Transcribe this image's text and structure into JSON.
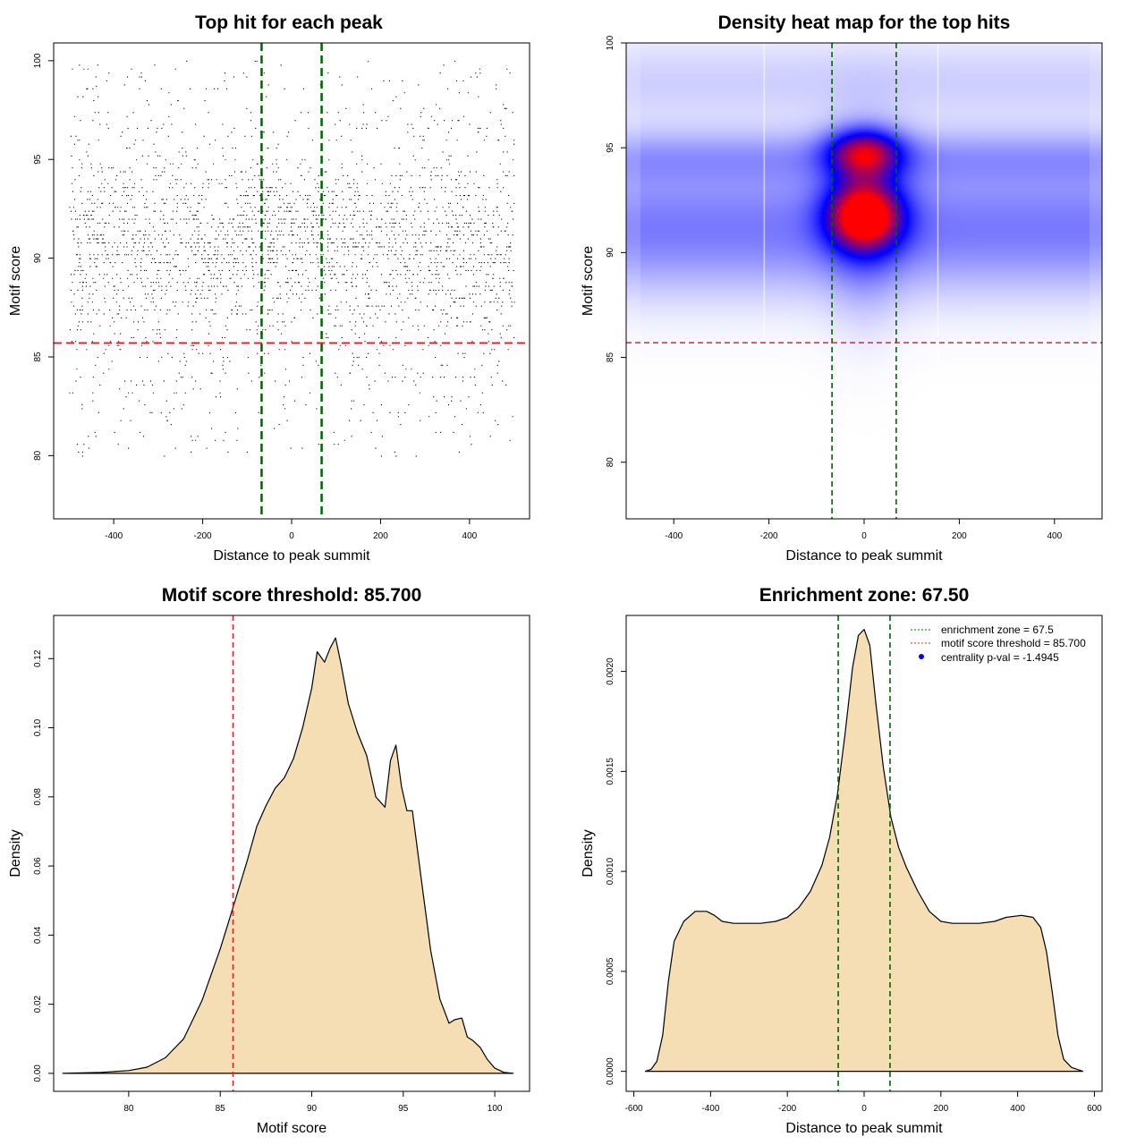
{
  "colors": {
    "green_line": "#006400",
    "red_line": "#e3242b",
    "density_fill": "#f5deb3",
    "heat_low": "#ffffff",
    "heat_mid": "#0000ff",
    "heat_high": "#ff0000",
    "legend_point": "#0000ff"
  },
  "chart_data": [
    {
      "id": "scatter",
      "type": "scatter",
      "title": "Top hit for each peak",
      "xlabel": "Distance to peak summit",
      "ylabel": "Motif score",
      "xlim": [
        -535,
        535
      ],
      "ylim": [
        76.8,
        100.9
      ],
      "xticks": [
        -400,
        -200,
        0,
        200,
        400
      ],
      "xtick_labels": [
        "-400",
        "-200",
        "0",
        "200",
        "400"
      ],
      "yticks": [
        80,
        85,
        90,
        95,
        100
      ],
      "ytick_labels": [
        "80",
        "85",
        "90",
        "95",
        "100"
      ],
      "vlines": [
        -67.5,
        67.5
      ],
      "hline": 85.7,
      "note": "Approximately 20000 points; x uniform in [-500, 500], scores distributed 77–100 with denser central band near x=0"
    },
    {
      "id": "heatmap",
      "type": "heatmap",
      "title": "Density heat map for the top hits",
      "xlabel": "Distance to peak summit",
      "ylabel": "Motif score",
      "xlim": [
        -500,
        500
      ],
      "ylim": [
        77.3,
        100
      ],
      "xticks": [
        -400,
        -200,
        0,
        200,
        400
      ],
      "xtick_labels": [
        "-400",
        "-200",
        "0",
        "200",
        "400"
      ],
      "yticks": [
        80,
        85,
        90,
        95,
        100
      ],
      "ytick_labels": [
        "80",
        "85",
        "90",
        "95",
        "100"
      ],
      "vlines": [
        -67.5,
        67.5
      ],
      "hline": 85.7,
      "peaks": [
        {
          "x": 0,
          "y": 91.8,
          "intensity": 1.0
        },
        {
          "x": 0,
          "y": 94.7,
          "intensity": 0.85
        }
      ]
    },
    {
      "id": "score_density",
      "type": "area",
      "title": "Motif score threshold: 85.700",
      "xlabel": "Motif score",
      "ylabel": "Density",
      "xlim": [
        75.9,
        101.9
      ],
      "ylim": [
        -0.0052,
        0.1325
      ],
      "xticks": [
        80,
        85,
        90,
        95,
        100
      ],
      "xtick_labels": [
        "80",
        "85",
        "90",
        "95",
        "100"
      ],
      "yticks": [
        0.0,
        0.02,
        0.04,
        0.06,
        0.08,
        0.1,
        0.12
      ],
      "ytick_labels": [
        "0.00",
        "0.02",
        "0.04",
        "0.06",
        "0.08",
        "0.10",
        "0.12"
      ],
      "vline": 85.7,
      "x": [
        76.4,
        78.5,
        80,
        81,
        82,
        83,
        84,
        85,
        85.7,
        86.5,
        87,
        87.5,
        88,
        88.5,
        89,
        89.5,
        90,
        90.3,
        90.7,
        91,
        91.3,
        91.6,
        92,
        92.5,
        93,
        93.5,
        94,
        94.3,
        94.6,
        94.9,
        95.2,
        95.5,
        96,
        96.5,
        97,
        97.5,
        97.8,
        98.2,
        98.5,
        98.8,
        99.2,
        99.6,
        100,
        100.5,
        101
      ],
      "y": [
        0.0,
        0.0003,
        0.0008,
        0.0018,
        0.0045,
        0.01,
        0.021,
        0.036,
        0.048,
        0.062,
        0.0715,
        0.0775,
        0.0825,
        0.0855,
        0.091,
        0.1,
        0.1115,
        0.122,
        0.119,
        0.123,
        0.126,
        0.1185,
        0.107,
        0.0985,
        0.092,
        0.08,
        0.077,
        0.0905,
        0.095,
        0.083,
        0.076,
        0.076,
        0.0555,
        0.0355,
        0.0215,
        0.0145,
        0.0155,
        0.016,
        0.0105,
        0.0095,
        0.0075,
        0.004,
        0.0015,
        0.0003,
        0.0
      ]
    },
    {
      "id": "distance_density",
      "type": "area",
      "title": "Enrichment zone: 67.50",
      "xlabel": "Distance to peak summit",
      "ylabel": "Density",
      "xlim": [
        -620,
        620
      ],
      "ylim": [
        -0.0001,
        0.00228
      ],
      "xticks": [
        -600,
        -400,
        -200,
        0,
        200,
        400,
        600
      ],
      "xtick_labels": [
        "-600",
        "-400",
        "-200",
        "0",
        "200",
        "400",
        "600"
      ],
      "yticks": [
        0.0,
        0.0005,
        0.001,
        0.0015,
        0.002
      ],
      "ytick_labels": [
        "0.0000",
        "0.0005",
        "0.0010",
        "0.0015",
        "0.0020"
      ],
      "vlines": [
        -67.5,
        67.5
      ],
      "x": [
        -570,
        -555,
        -540,
        -525,
        -510,
        -495,
        -470,
        -440,
        -410,
        -390,
        -370,
        -340,
        -300,
        -270,
        -230,
        -200,
        -170,
        -140,
        -110,
        -90,
        -70,
        -50,
        -30,
        -15,
        0,
        15,
        30,
        50,
        70,
        90,
        110,
        140,
        170,
        200,
        230,
        270,
        300,
        340,
        370,
        410,
        440,
        460,
        475,
        490,
        505,
        520,
        540,
        555,
        570
      ],
      "y": [
        0.0,
        1e-05,
        5e-05,
        0.00018,
        0.00045,
        0.00065,
        0.00075,
        0.0008,
        0.0008,
        0.00078,
        0.00075,
        0.00074,
        0.00074,
        0.00074,
        0.00075,
        0.00077,
        0.00082,
        0.0009,
        0.00103,
        0.00117,
        0.00138,
        0.00168,
        0.00202,
        0.00218,
        0.00221,
        0.00213,
        0.00185,
        0.00152,
        0.00127,
        0.00112,
        0.00102,
        0.0009,
        0.0008,
        0.00075,
        0.00074,
        0.00074,
        0.00074,
        0.00075,
        0.00077,
        0.00078,
        0.00077,
        0.00072,
        0.0006,
        0.0004,
        0.00018,
        6e-05,
        2e-05,
        1e-05,
        0.0
      ]
    }
  ],
  "legend": {
    "items": [
      {
        "label": "enrichment zone = 67.5",
        "type": "line",
        "color": "#006400"
      },
      {
        "label": "motif score threshold = 85.700",
        "type": "line",
        "color": "#e3242b"
      },
      {
        "label": "centrality p-val = -1.4945",
        "type": "point",
        "color": "#0000ff"
      }
    ]
  }
}
